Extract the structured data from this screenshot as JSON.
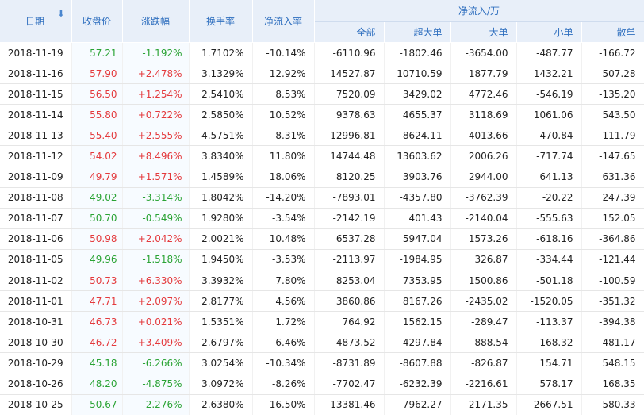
{
  "header": {
    "date": "日期",
    "close": "收盘价",
    "change": "涨跌幅",
    "turnover": "换手率",
    "net_rate": "净流入率",
    "net_flow_group": "净流入/万",
    "total": "全部",
    "super_large": "超大单",
    "large": "大单",
    "small": "小单",
    "retail": "散单"
  },
  "colors": {
    "up": "#e4393c",
    "down": "#2aa334",
    "header_text": "#2f6fbf",
    "header_bg": "#e8eff9"
  },
  "rows": [
    {
      "date": "2018-11-19",
      "close": "57.21",
      "change": "-1.192%",
      "turnover": "1.7102%",
      "net_rate": "-10.14%",
      "total": "-6110.96",
      "super_large": "-1802.46",
      "large": "-3654.00",
      "small": "-487.77",
      "retail": "-166.72",
      "dir": "down"
    },
    {
      "date": "2018-11-16",
      "close": "57.90",
      "change": "+2.478%",
      "turnover": "3.1329%",
      "net_rate": "12.92%",
      "total": "14527.87",
      "super_large": "10710.59",
      "large": "1877.79",
      "small": "1432.21",
      "retail": "507.28",
      "dir": "up"
    },
    {
      "date": "2018-11-15",
      "close": "56.50",
      "change": "+1.254%",
      "turnover": "2.5410%",
      "net_rate": "8.53%",
      "total": "7520.09",
      "super_large": "3429.02",
      "large": "4772.46",
      "small": "-546.19",
      "retail": "-135.20",
      "dir": "up"
    },
    {
      "date": "2018-11-14",
      "close": "55.80",
      "change": "+0.722%",
      "turnover": "2.5850%",
      "net_rate": "10.52%",
      "total": "9378.63",
      "super_large": "4655.37",
      "large": "3118.69",
      "small": "1061.06",
      "retail": "543.50",
      "dir": "up"
    },
    {
      "date": "2018-11-13",
      "close": "55.40",
      "change": "+2.555%",
      "turnover": "4.5751%",
      "net_rate": "8.31%",
      "total": "12996.81",
      "super_large": "8624.11",
      "large": "4013.66",
      "small": "470.84",
      "retail": "-111.79",
      "dir": "up"
    },
    {
      "date": "2018-11-12",
      "close": "54.02",
      "change": "+8.496%",
      "turnover": "3.8340%",
      "net_rate": "11.80%",
      "total": "14744.48",
      "super_large": "13603.62",
      "large": "2006.26",
      "small": "-717.74",
      "retail": "-147.65",
      "dir": "up"
    },
    {
      "date": "2018-11-09",
      "close": "49.79",
      "change": "+1.571%",
      "turnover": "1.4589%",
      "net_rate": "18.06%",
      "total": "8120.25",
      "super_large": "3903.76",
      "large": "2944.00",
      "small": "641.13",
      "retail": "631.36",
      "dir": "up"
    },
    {
      "date": "2018-11-08",
      "close": "49.02",
      "change": "-3.314%",
      "turnover": "1.8042%",
      "net_rate": "-14.20%",
      "total": "-7893.01",
      "super_large": "-4357.80",
      "large": "-3762.39",
      "small": "-20.22",
      "retail": "247.39",
      "dir": "down"
    },
    {
      "date": "2018-11-07",
      "close": "50.70",
      "change": "-0.549%",
      "turnover": "1.9280%",
      "net_rate": "-3.54%",
      "total": "-2142.19",
      "super_large": "401.43",
      "large": "-2140.04",
      "small": "-555.63",
      "retail": "152.05",
      "dir": "down"
    },
    {
      "date": "2018-11-06",
      "close": "50.98",
      "change": "+2.042%",
      "turnover": "2.0021%",
      "net_rate": "10.48%",
      "total": "6537.28",
      "super_large": "5947.04",
      "large": "1573.26",
      "small": "-618.16",
      "retail": "-364.86",
      "dir": "up"
    },
    {
      "date": "2018-11-05",
      "close": "49.96",
      "change": "-1.518%",
      "turnover": "1.9450%",
      "net_rate": "-3.53%",
      "total": "-2113.97",
      "super_large": "-1984.95",
      "large": "326.87",
      "small": "-334.44",
      "retail": "-121.44",
      "dir": "down"
    },
    {
      "date": "2018-11-02",
      "close": "50.73",
      "change": "+6.330%",
      "turnover": "3.3932%",
      "net_rate": "7.80%",
      "total": "8253.04",
      "super_large": "7353.95",
      "large": "1500.86",
      "small": "-501.18",
      "retail": "-100.59",
      "dir": "up"
    },
    {
      "date": "2018-11-01",
      "close": "47.71",
      "change": "+2.097%",
      "turnover": "2.8177%",
      "net_rate": "4.56%",
      "total": "3860.86",
      "super_large": "8167.26",
      "large": "-2435.02",
      "small": "-1520.05",
      "retail": "-351.32",
      "dir": "up"
    },
    {
      "date": "2018-10-31",
      "close": "46.73",
      "change": "+0.021%",
      "turnover": "1.5351%",
      "net_rate": "1.72%",
      "total": "764.92",
      "super_large": "1562.15",
      "large": "-289.47",
      "small": "-113.37",
      "retail": "-394.38",
      "dir": "up"
    },
    {
      "date": "2018-10-30",
      "close": "46.72",
      "change": "+3.409%",
      "turnover": "2.6797%",
      "net_rate": "6.46%",
      "total": "4873.52",
      "super_large": "4297.84",
      "large": "888.54",
      "small": "168.32",
      "retail": "-481.17",
      "dir": "up"
    },
    {
      "date": "2018-10-29",
      "close": "45.18",
      "change": "-6.266%",
      "turnover": "3.0254%",
      "net_rate": "-10.34%",
      "total": "-8731.89",
      "super_large": "-8607.88",
      "large": "-826.87",
      "small": "154.71",
      "retail": "548.15",
      "dir": "down"
    },
    {
      "date": "2018-10-26",
      "close": "48.20",
      "change": "-4.875%",
      "turnover": "3.0972%",
      "net_rate": "-8.26%",
      "total": "-7702.47",
      "super_large": "-6232.39",
      "large": "-2216.61",
      "small": "578.17",
      "retail": "168.35",
      "dir": "down"
    },
    {
      "date": "2018-10-25",
      "close": "50.67",
      "change": "-2.276%",
      "turnover": "2.6380%",
      "net_rate": "-16.50%",
      "total": "-13381.46",
      "super_large": "-7962.27",
      "large": "-2171.35",
      "small": "-2667.51",
      "retail": "-580.33",
      "dir": "down"
    }
  ]
}
